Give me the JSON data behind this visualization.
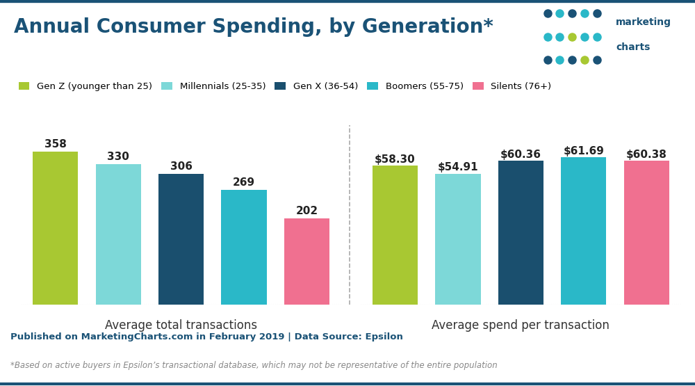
{
  "title": "Annual Consumer Spending, by Generation*",
  "title_color": "#1a5276",
  "background_color": "#ffffff",
  "generations": [
    "Gen Z (younger than 25)",
    "Millennials (25-35)",
    "Gen X (36-54)",
    "Boomers (55-75)",
    "Silents (76+)"
  ],
  "colors": [
    "#a8c832",
    "#7dd8d8",
    "#1a4f6e",
    "#2ab8c8",
    "#f07090"
  ],
  "transactions": [
    358,
    330,
    306,
    269,
    202
  ],
  "spend": [
    58.3,
    54.91,
    60.36,
    61.69,
    60.38
  ],
  "transaction_labels": [
    "358",
    "330",
    "306",
    "269",
    "202"
  ],
  "spend_labels": [
    "$58.30",
    "$54.91",
    "$60.36",
    "$61.69",
    "$60.38"
  ],
  "xlabel1": "Average total transactions",
  "xlabel2": "Average spend per transaction",
  "footer_bg": "#c8d8e4",
  "footer_text": "Published on MarketingCharts.com in February 2019 | Data Source: Epsilon",
  "footnote_text": "*Based on active buyers in Epsilon’s transactional database, which may not be representative of the entire population",
  "divider_color": "#aaaaaa",
  "label_fontsize": 11,
  "axis_label_fontsize": 12,
  "top_border_color": "#1a5276",
  "logo_dot_colors_row1": [
    "#1a5276",
    "#2ab8c8",
    "#1a5276",
    "#2ab8c8",
    "#1a5276"
  ],
  "logo_dot_colors_row2": [
    "#2ab8c8",
    "#2ab8c8",
    "#a8c832",
    "#2ab8c8",
    "#2ab8c8"
  ],
  "logo_dot_colors_row3": [
    "#1a5276",
    "#2ab8c8",
    "#1a5276",
    "#a8c832",
    "#1a5276"
  ]
}
